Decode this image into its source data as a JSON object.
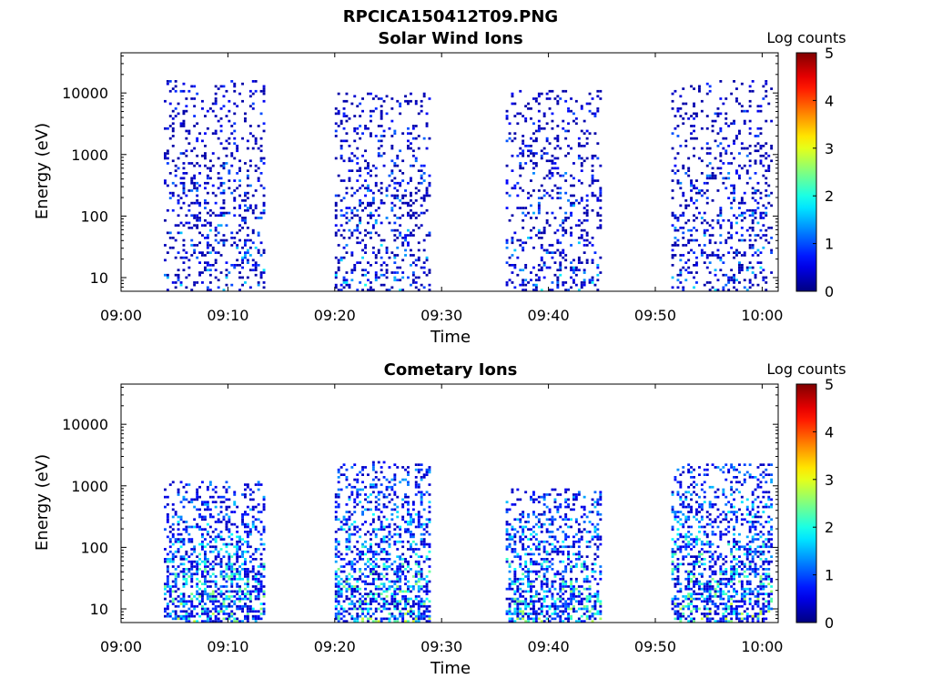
{
  "figure_title": "RPCICA150412T09.PNG",
  "colormap": "jet",
  "chart_data": [
    {
      "type": "heatmap",
      "title": "Solar Wind Ions",
      "xlabel": "Time",
      "ylabel": "Energy (eV)",
      "x_ticks": [
        "09:00",
        "09:10",
        "09:20",
        "09:30",
        "09:40",
        "09:50",
        "10:00"
      ],
      "x_range_min": [
        0,
        61.5
      ],
      "y_scale": "log",
      "y_ticks": [
        "10",
        "100",
        "1000",
        "10000"
      ],
      "y_range_ev": [
        6,
        45000
      ],
      "colorbar_label": "Log counts",
      "colorbar_ticks": [
        "0",
        "1",
        "2",
        "3",
        "4",
        "5"
      ],
      "colorbar_range": [
        0,
        5
      ],
      "bursts": [
        {
          "t_min": [
            4.0,
            13.5
          ],
          "e_ev": [
            6,
            15000
          ],
          "level": [
            0.2,
            2.0
          ]
        },
        {
          "t_min": [
            20.0,
            29.0
          ],
          "e_ev": [
            6,
            10000
          ],
          "level": [
            0.2,
            2.0
          ]
        },
        {
          "t_min": [
            36.0,
            45.0
          ],
          "e_ev": [
            6,
            11000
          ],
          "level": [
            0.2,
            2.0
          ]
        },
        {
          "t_min": [
            51.5,
            61.0
          ],
          "e_ev": [
            6,
            16000
          ],
          "level": [
            0.2,
            1.9
          ]
        }
      ]
    },
    {
      "type": "heatmap",
      "title": "Cometary Ions",
      "xlabel": "Time",
      "ylabel": "Energy (eV)",
      "x_ticks": [
        "09:00",
        "09:10",
        "09:20",
        "09:30",
        "09:40",
        "09:50",
        "10:00"
      ],
      "x_range_min": [
        0,
        61.5
      ],
      "y_scale": "log",
      "y_ticks": [
        "10",
        "100",
        "1000",
        "10000"
      ],
      "y_range_ev": [
        6,
        45000
      ],
      "colorbar_label": "Log counts",
      "colorbar_ticks": [
        "0",
        "1",
        "2",
        "3",
        "4",
        "5"
      ],
      "colorbar_range": [
        0,
        5
      ],
      "bursts": [
        {
          "t_min": [
            4.0,
            13.5
          ],
          "e_ev": [
            6,
            1100
          ],
          "level": [
            0.3,
            3.0
          ]
        },
        {
          "t_min": [
            20.0,
            29.0
          ],
          "e_ev": [
            6,
            2500
          ],
          "level": [
            0.3,
            3.0
          ]
        },
        {
          "t_min": [
            36.0,
            45.0
          ],
          "e_ev": [
            6,
            900
          ],
          "level": [
            0.3,
            3.0
          ]
        },
        {
          "t_min": [
            51.5,
            61.0
          ],
          "e_ev": [
            6,
            2100
          ],
          "level": [
            0.3,
            3.1
          ]
        }
      ]
    }
  ]
}
